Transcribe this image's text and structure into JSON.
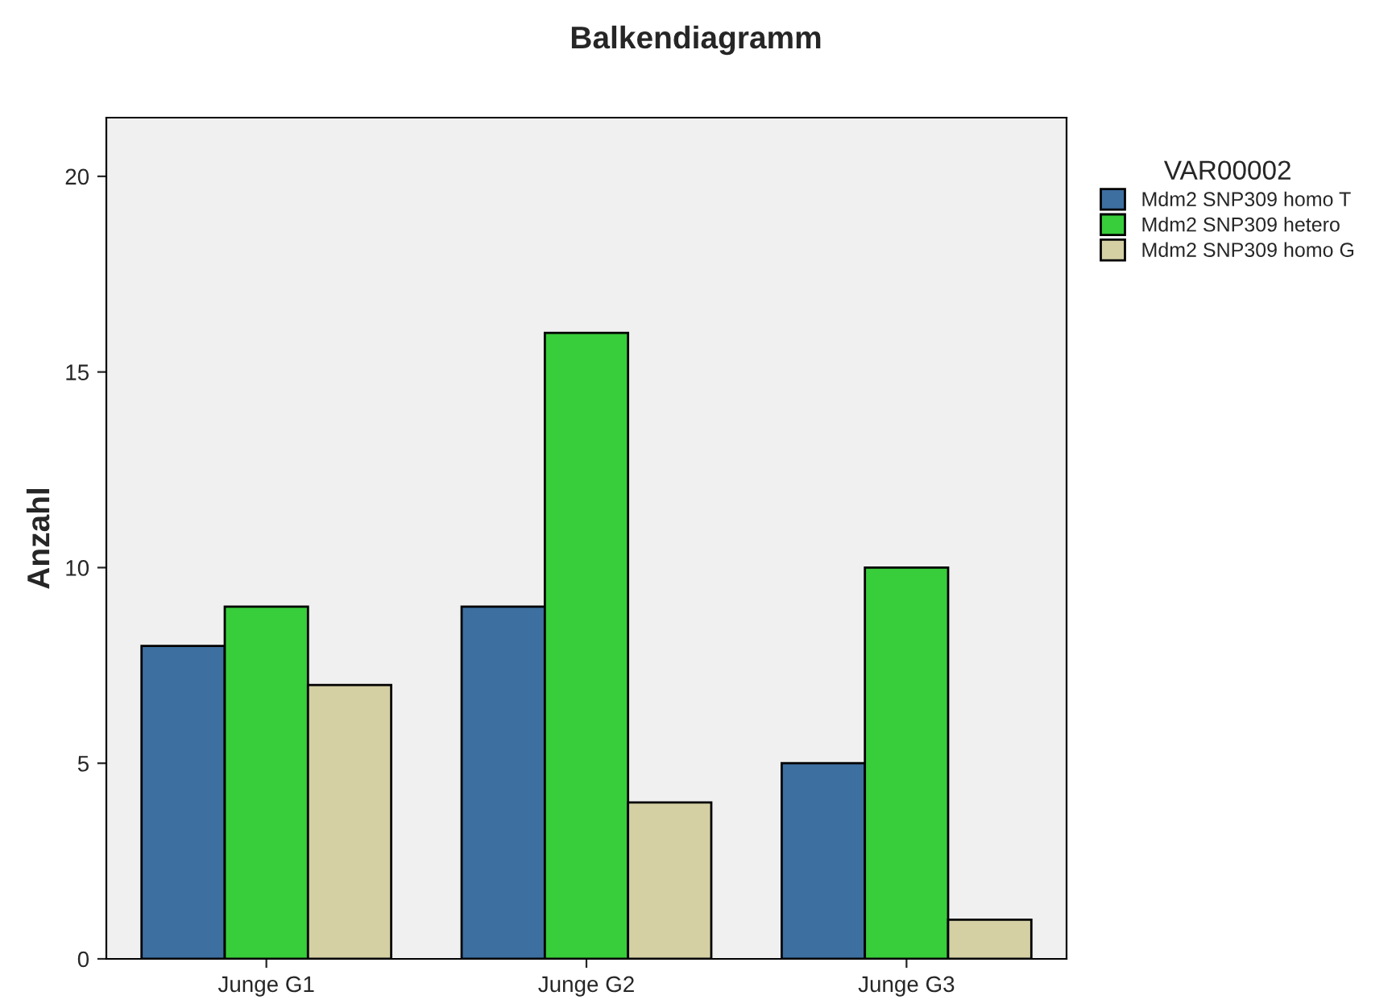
{
  "chart_data": {
    "type": "bar",
    "title": "Balkendiagramm",
    "ylabel": "Anzahl",
    "legend_title": "VAR00002",
    "categories": [
      "Junge G1",
      "Junge G2",
      "Junge G3"
    ],
    "series": [
      {
        "name": "Mdm2 SNP309 homo T",
        "color": "#3d6fa0",
        "values": [
          8,
          9,
          5
        ]
      },
      {
        "name": "Mdm2 SNP309 hetero",
        "color": "#38cd3b",
        "values": [
          9,
          16,
          10
        ]
      },
      {
        "name": "Mdm2 SNP309 homo G",
        "color": "#d4d0a4",
        "values": [
          7,
          4,
          1
        ]
      }
    ],
    "ylim": [
      0,
      21.5
    ],
    "yticks": [
      0,
      5,
      10,
      15,
      20
    ],
    "grid": false,
    "legend": "top right"
  }
}
